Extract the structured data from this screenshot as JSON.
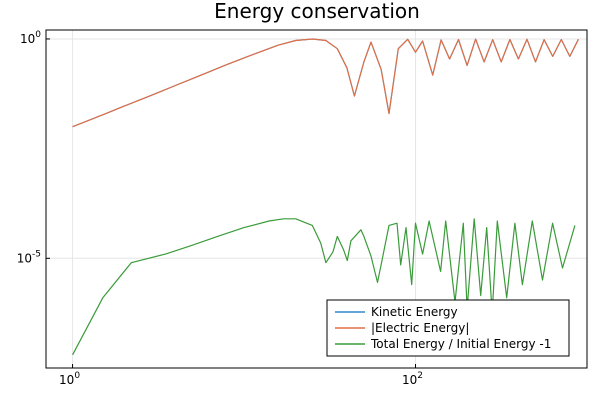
{
  "chart_data": {
    "type": "line",
    "title": "Energy conservation",
    "xscale": "log10",
    "yscale": "log10",
    "xlim": [
      0.7,
      1000
    ],
    "ylim": [
      3.16e-08,
      1.6
    ],
    "grid": true,
    "legend_position": "bottom-right",
    "x_ticks": [
      {
        "value": 1,
        "base": "10",
        "exp": "0"
      },
      {
        "value": 100,
        "base": "10",
        "exp": "2"
      }
    ],
    "y_ticks": [
      {
        "value": 1,
        "base": "10",
        "exp": "0"
      },
      {
        "value": 1e-05,
        "base": "10",
        "exp": "-5"
      }
    ],
    "series": [
      {
        "name": "Kinetic Energy",
        "color": "#2E8CC9",
        "x": [
          1,
          1.26,
          1.59,
          2,
          2.51,
          3.16,
          3.98,
          5.01,
          6.31,
          7.94,
          10,
          12.6,
          15.8,
          20,
          25.1,
          30,
          35,
          39.8,
          44,
          50,
          55,
          63.1,
          70,
          79.4,
          90,
          100,
          110,
          126,
          141,
          158,
          178,
          200,
          224,
          251,
          282,
          316,
          355,
          398,
          447,
          501,
          562,
          631,
          708,
          794,
          891
        ],
        "values": [
          0.01,
          0.0143,
          0.0204,
          0.0295,
          0.042,
          0.06,
          0.087,
          0.125,
          0.18,
          0.26,
          0.37,
          0.52,
          0.72,
          0.92,
          1.0,
          0.92,
          0.6,
          0.22,
          0.05,
          0.3,
          0.85,
          0.2,
          0.02,
          0.6,
          0.98,
          0.5,
          0.9,
          0.15,
          0.95,
          0.35,
          0.97,
          0.25,
          0.99,
          0.3,
          0.96,
          0.3,
          0.97,
          0.35,
          0.98,
          0.3,
          0.96,
          0.4,
          0.97,
          0.4,
          0.98
        ]
      },
      {
        "name": "|Electric Energy|",
        "color": "#E26F46",
        "x": [
          1,
          1.26,
          1.59,
          2,
          2.51,
          3.16,
          3.98,
          5.01,
          6.31,
          7.94,
          10,
          12.6,
          15.8,
          20,
          25.1,
          30,
          35,
          39.8,
          44,
          50,
          55,
          63.1,
          70,
          79.4,
          90,
          100,
          110,
          126,
          141,
          158,
          178,
          200,
          224,
          251,
          282,
          316,
          355,
          398,
          447,
          501,
          562,
          631,
          708,
          794,
          891
        ],
        "values": [
          0.01,
          0.0143,
          0.0204,
          0.0295,
          0.042,
          0.06,
          0.087,
          0.125,
          0.18,
          0.26,
          0.37,
          0.52,
          0.72,
          0.92,
          1.0,
          0.92,
          0.6,
          0.22,
          0.05,
          0.3,
          0.85,
          0.2,
          0.02,
          0.6,
          0.98,
          0.5,
          0.9,
          0.15,
          0.95,
          0.35,
          0.97,
          0.25,
          0.99,
          0.3,
          0.96,
          0.3,
          0.97,
          0.35,
          0.98,
          0.3,
          0.96,
          0.4,
          0.97,
          0.4,
          0.98
        ]
      },
      {
        "name": "Total Energy / Initial Energy -1",
        "color": "#3A9B3A",
        "x": [
          1,
          1.5,
          2.2,
          3.5,
          5,
          7,
          10,
          14,
          17,
          20,
          25,
          28,
          30,
          33,
          35,
          38,
          40,
          42,
          48,
          50,
          55,
          60,
          63,
          70,
          78,
          82,
          88,
          95,
          100,
          110,
          120,
          140,
          150,
          170,
          190,
          200,
          220,
          240,
          260,
          280,
          300,
          340,
          380,
          420,
          480,
          550,
          630,
          720,
          850
        ],
        "values": [
          6.31e-08,
          1.26e-06,
          7.94e-06,
          1.26e-05,
          1.99e-05,
          3.16e-05,
          5.01e-05,
          7.08e-05,
          7.94e-05,
          7.94e-05,
          5.62e-05,
          2.23e-05,
          7.94e-06,
          1.41e-05,
          3.16e-05,
          1.58e-05,
          8.91e-06,
          2.51e-05,
          4.47e-05,
          3.16e-05,
          1.12e-05,
          2.82e-06,
          7.08e-06,
          5.62e-05,
          6.31e-05,
          7.08e-06,
          5.01e-05,
          2.51e-06,
          6.31e-05,
          1.25e-05,
          7.08e-05,
          5.01e-06,
          7.08e-05,
          1e-06,
          6.31e-05,
          7.08e-07,
          7.94e-05,
          1.41e-06,
          5.01e-05,
          5.62e-07,
          7.08e-05,
          1.26e-06,
          6.31e-05,
          2.5e-06,
          7.08e-05,
          3.2e-06,
          6.31e-05,
          6e-06,
          5.62e-05
        ]
      }
    ]
  }
}
